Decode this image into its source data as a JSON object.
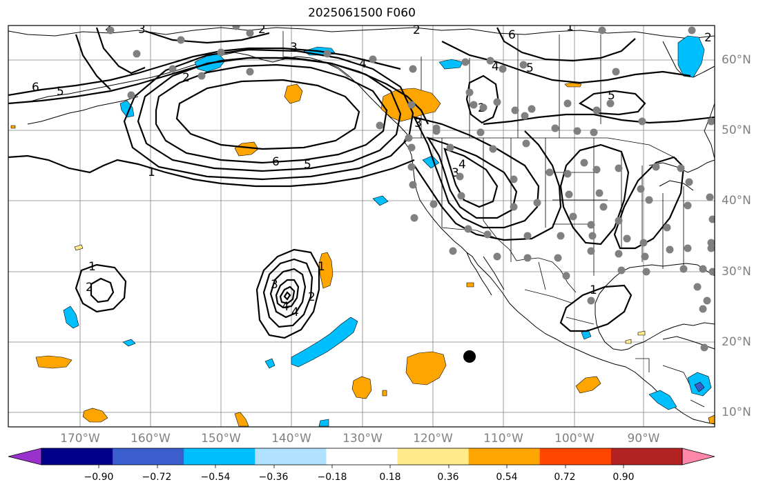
{
  "title": "2025061500 F060",
  "map": {
    "lat_labels": [
      "60°N",
      "50°N",
      "40°N",
      "30°N",
      "20°N",
      "10°N"
    ],
    "lon_labels": [
      "170°W",
      "160°W",
      "150°W",
      "140°W",
      "130°W",
      "120°W",
      "110°W",
      "100°W",
      "90°W"
    ],
    "contour_labels": [
      "1",
      "2",
      "3",
      "4",
      "5",
      "6",
      "2",
      "3",
      "4",
      "5",
      "6",
      "1",
      "2",
      "3",
      "4",
      "5",
      "6",
      "1",
      "2",
      "3",
      "2",
      "4",
      "1",
      "2",
      "3",
      "4",
      "2",
      "1",
      "2",
      "5"
    ],
    "colors": {
      "land_line": "#000000",
      "grid": "#808080",
      "contour": "#000000",
      "station": "#808080",
      "pos_fill": "#ffa500",
      "neg_fill": "#00bfff",
      "light_pos": "#ffeb8a"
    }
  },
  "colorbar": {
    "ticks": [
      "−0.90",
      "−0.72",
      "−0.54",
      "−0.36",
      "−0.18",
      "0.18",
      "0.36",
      "0.54",
      "0.72",
      "0.90"
    ],
    "colors": [
      "#9932cc",
      "#00008b",
      "#3a5fcd",
      "#00bfff",
      "#b0e2ff",
      "#ffffff",
      "#ffeb8a",
      "#ffa500",
      "#ff4500",
      "#b22222",
      "#ff88aa"
    ]
  }
}
